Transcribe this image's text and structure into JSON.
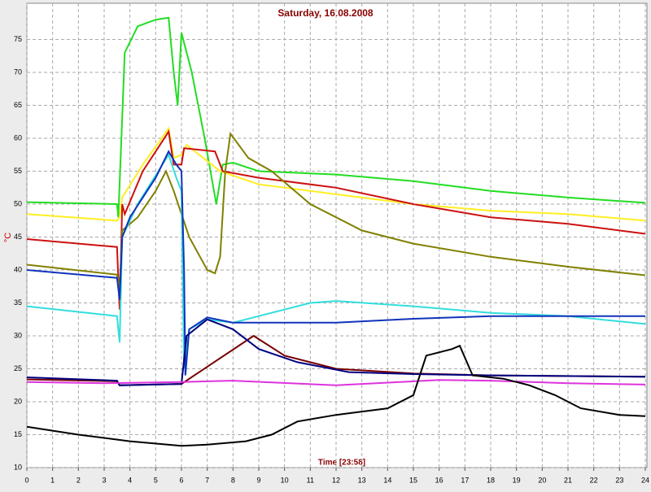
{
  "chart_data": {
    "type": "line",
    "title": "Saturday, 16.08.2008",
    "ylabel": "°C",
    "xlabel": "Time [23:58]",
    "xlim": [
      0,
      24
    ],
    "ylim": [
      10,
      80.5
    ],
    "xticks": [
      0,
      1,
      2,
      3,
      4,
      5,
      6,
      7,
      8,
      9,
      10,
      11,
      12,
      13,
      14,
      15,
      16,
      17,
      18,
      19,
      20,
      21,
      22,
      23,
      24
    ],
    "yticks": [
      10,
      15,
      20,
      25,
      30,
      35,
      40,
      45,
      50,
      55,
      60,
      65,
      70,
      75
    ],
    "grid": true,
    "series": [
      {
        "color": "#22dd22",
        "x": [
          0,
          3.5,
          3.55,
          3.8,
          4.3,
          5,
          5.5,
          5.7,
          5.85,
          6.0,
          6.4,
          6.9,
          7.35,
          7.6,
          8,
          9,
          12,
          15,
          18,
          21,
          24
        ],
        "values": [
          50.3,
          50,
          48,
          73,
          77,
          78,
          78.3,
          70,
          65,
          76,
          70,
          60,
          50,
          56,
          56.3,
          55,
          54.5,
          53.5,
          52,
          51,
          50.2
        ]
      },
      {
        "color": "#ffee22",
        "x": [
          0,
          3.5,
          3.6,
          3.7,
          4.5,
          5.5,
          5.7,
          6,
          6.2,
          7.5,
          9,
          12,
          15,
          18,
          21,
          24
        ],
        "values": [
          48.5,
          47.5,
          48,
          51,
          56,
          61.5,
          57,
          57.5,
          59,
          55,
          53,
          51.5,
          50,
          49,
          48.5,
          47.5
        ]
      },
      {
        "color": "#cc1111",
        "x": [
          0,
          3.5,
          3.6,
          3.7,
          3.8,
          4.5,
          5.5,
          5.7,
          6,
          6.1,
          7.3,
          7.6,
          9,
          12,
          15,
          18,
          21,
          24
        ],
        "values": [
          44.7,
          43.5,
          34,
          50,
          48.5,
          55,
          61,
          56,
          56,
          58.5,
          58,
          55,
          54,
          52.5,
          50,
          48,
          47,
          45.5
        ]
      },
      {
        "color": "#808000",
        "x": [
          0,
          3.5,
          3.6,
          3.7,
          4.3,
          5,
          5.4,
          5.7,
          6.3,
          7,
          7.3,
          7.5,
          7.7,
          7.9,
          8.6,
          9.5,
          11,
          13,
          15,
          18,
          21,
          24
        ],
        "values": [
          40.8,
          39.3,
          37,
          46,
          48,
          52,
          55,
          52,
          45,
          40,
          39.5,
          42,
          55,
          60.7,
          57,
          55,
          50,
          46,
          44,
          42,
          40.5,
          39.2
        ]
      },
      {
        "color": "#33dddd",
        "x": [
          0,
          3.5,
          3.6,
          3.7,
          4.3,
          5.5,
          5.8,
          6.0,
          6.1,
          6.3,
          7,
          8,
          9,
          11,
          12,
          15,
          18,
          21,
          24
        ],
        "values": [
          34.5,
          33,
          29,
          45,
          50,
          57.5,
          54,
          52,
          25,
          31,
          32.5,
          32,
          33,
          35,
          35.3,
          34.5,
          33.5,
          33,
          31.8
        ]
      },
      {
        "color": "#1133bb",
        "x": [
          0,
          3.5,
          3.6,
          3.7,
          4,
          5,
          5.5,
          5.8,
          6,
          6.1,
          6.15,
          6.3,
          7,
          8,
          12,
          15,
          18,
          24
        ],
        "values": [
          40,
          38.8,
          35.5,
          45,
          48,
          54,
          58,
          56,
          55,
          40,
          24,
          31,
          32.8,
          32,
          32,
          32.6,
          33,
          33
        ]
      },
      {
        "color": "#770000",
        "x": [
          0,
          3.5,
          3.6,
          6,
          8.8,
          10,
          12,
          15,
          18,
          24
        ],
        "values": [
          23.4,
          23.1,
          22.5,
          22.7,
          30,
          27,
          25,
          24.3,
          24,
          23.8
        ]
      },
      {
        "color": "#000080",
        "x": [
          0,
          3.5,
          3.6,
          6,
          6.2,
          7,
          8,
          9,
          10.5,
          12.5,
          15,
          18,
          24
        ],
        "values": [
          23.7,
          23.2,
          22.5,
          22.7,
          30,
          32.5,
          31,
          28,
          26,
          24.5,
          24.2,
          24,
          23.8
        ]
      },
      {
        "color": "#dd33dd",
        "x": [
          0,
          3,
          6,
          8,
          12,
          16,
          18,
          21,
          24
        ],
        "values": [
          23,
          22.8,
          23,
          23.2,
          22.5,
          23.3,
          23.2,
          22.8,
          22.6
        ]
      },
      {
        "color": "#000000",
        "x": [
          0,
          2,
          4,
          6,
          7,
          8.5,
          9.5,
          10.5,
          12,
          14,
          15,
          15.5,
          16.5,
          16.8,
          17.3,
          18.5,
          19.5,
          20.5,
          21.5,
          23,
          24
        ],
        "values": [
          16.2,
          15,
          14,
          13.3,
          13.5,
          14,
          15,
          17,
          18,
          19,
          21,
          27,
          28,
          28.5,
          24,
          23.5,
          22.5,
          21,
          19,
          18,
          17.8
        ]
      }
    ]
  }
}
